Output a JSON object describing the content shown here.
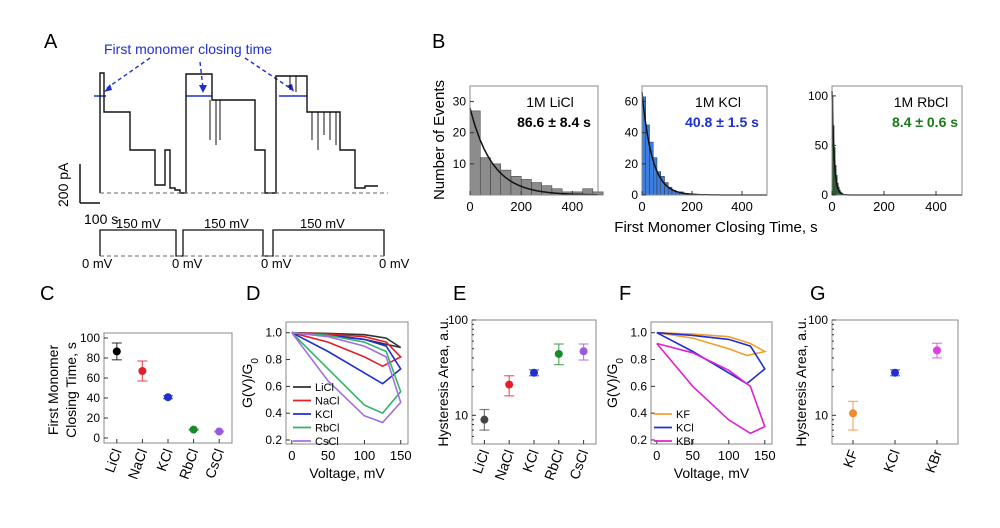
{
  "panel_letters": {
    "A": "A",
    "B": "B",
    "C": "C",
    "D": "D",
    "E": "E",
    "F": "F",
    "G": "G"
  },
  "panel_a": {
    "annotation": "First monomer closing time",
    "scale_current": "200 pA",
    "scale_time": "100 s",
    "voltage_high": "150 mV",
    "voltage_low": "0 mV"
  },
  "chart_data": [
    {
      "panel": "B",
      "type": "bar",
      "xlabel": "First Monomer Closing Time, s",
      "ylabel": "Number of Events",
      "subplots": [
        {
          "name": "1M LiCl",
          "stat": "86.6 ± 8.4 s",
          "color": "#8c8c8c",
          "stat_color": "#000000",
          "xlim": [
            0,
            500
          ],
          "ylim": [
            0,
            35
          ],
          "xticks": [
            0,
            200,
            400
          ],
          "yticks": [
            10,
            20,
            30
          ],
          "bin_width": 40,
          "bins": [
            0,
            40,
            80,
            120,
            160,
            200,
            240,
            280,
            320,
            360,
            400,
            440,
            480
          ],
          "values": [
            27,
            12,
            10,
            8,
            6,
            5,
            4,
            3,
            2,
            1,
            1,
            2,
            1
          ],
          "fit_tau": 86.6,
          "fit_a": 28
        },
        {
          "name": "1M KCl",
          "stat": "40.8 ± 1.5 s",
          "color": "#3d7fe0",
          "stat_color": "#1f2fd0",
          "xlim": [
            0,
            500
          ],
          "ylim": [
            0,
            70
          ],
          "xticks": [
            0,
            200,
            400
          ],
          "yticks": [
            0,
            20,
            40,
            60
          ],
          "bin_width": 15,
          "bins": [
            0,
            15,
            30,
            45,
            60,
            75,
            90,
            105,
            120,
            135,
            150,
            165
          ],
          "values": [
            63,
            45,
            34,
            24,
            15,
            12,
            8,
            5,
            3,
            2,
            2,
            1
          ],
          "fit_tau": 40.8,
          "fit_a": 66
        },
        {
          "name": "1M RbCl",
          "stat": "8.4 ± 0.6 s",
          "color": "#1f8f2a",
          "stat_color": "#1a7a1a",
          "xlim": [
            0,
            500
          ],
          "ylim": [
            0,
            110
          ],
          "xticks": [
            0,
            200,
            400
          ],
          "yticks": [
            0,
            50,
            100
          ],
          "bin_width": 4,
          "bins": [
            0,
            4,
            8,
            12,
            16,
            20,
            24,
            28,
            32,
            36
          ],
          "values": [
            100,
            70,
            48,
            30,
            20,
            12,
            8,
            5,
            3,
            2
          ],
          "fit_tau": 8.4,
          "fit_a": 105
        }
      ]
    },
    {
      "panel": "C",
      "type": "scatter",
      "ylabel": "First Monomer Closing Time, s",
      "categories": [
        "LiCl",
        "NaCl",
        "KCl",
        "RbCl",
        "CsCl"
      ],
      "values": [
        86.6,
        67,
        40.8,
        8.4,
        6.5
      ],
      "errors": [
        8.4,
        10,
        1.5,
        0.6,
        0.5
      ],
      "colors": [
        "#000000",
        "#e0202a",
        "#1f2fd0",
        "#1a8a2a",
        "#9a5ae0"
      ],
      "ylim": [
        -5,
        105
      ],
      "yticks": [
        0,
        20,
        40,
        60,
        80,
        100
      ]
    },
    {
      "panel": "D",
      "type": "line",
      "xlabel": "Voltage, mV",
      "ylabel": "G(V)/G",
      "ylabel_sub": "0",
      "xlim": [
        -8,
        160
      ],
      "ylim": [
        0.17,
        1.08
      ],
      "xticks": [
        0,
        50,
        100,
        150
      ],
      "yticks": [
        0.2,
        0.4,
        0.6,
        0.8,
        1.0
      ],
      "series": [
        {
          "name": "LiCl",
          "color": "#333333",
          "upper": [
            [
              0,
              1.0
            ],
            [
              50,
              0.995
            ],
            [
              100,
              0.985
            ],
            [
              130,
              0.96
            ],
            [
              150,
              0.89
            ]
          ],
          "lower": [
            [
              150,
              0.89
            ],
            [
              125,
              0.92
            ],
            [
              100,
              0.95
            ],
            [
              50,
              0.985
            ],
            [
              0,
              1.0
            ]
          ]
        },
        {
          "name": "NaCl",
          "color": "#e0202a",
          "upper": [
            [
              0,
              1.0
            ],
            [
              50,
              0.99
            ],
            [
              100,
              0.97
            ],
            [
              130,
              0.93
            ],
            [
              150,
              0.82
            ]
          ],
          "lower": [
            [
              150,
              0.82
            ],
            [
              125,
              0.75
            ],
            [
              100,
              0.82
            ],
            [
              50,
              0.93
            ],
            [
              0,
              1.0
            ]
          ]
        },
        {
          "name": "KCl",
          "color": "#1f2fd0",
          "upper": [
            [
              0,
              1.0
            ],
            [
              50,
              0.98
            ],
            [
              100,
              0.95
            ],
            [
              130,
              0.9
            ],
            [
              150,
              0.73
            ]
          ],
          "lower": [
            [
              150,
              0.73
            ],
            [
              125,
              0.62
            ],
            [
              100,
              0.7
            ],
            [
              50,
              0.86
            ],
            [
              0,
              1.0
            ]
          ]
        },
        {
          "name": "RbCl",
          "color": "#33b36a",
          "upper": [
            [
              0,
              1.0
            ],
            [
              50,
              0.98
            ],
            [
              100,
              0.93
            ],
            [
              130,
              0.86
            ],
            [
              150,
              0.56
            ]
          ],
          "lower": [
            [
              150,
              0.56
            ],
            [
              125,
              0.4
            ],
            [
              100,
              0.46
            ],
            [
              50,
              0.73
            ],
            [
              0,
              1.0
            ]
          ]
        },
        {
          "name": "CsCl",
          "color": "#a070e0",
          "upper": [
            [
              0,
              1.0
            ],
            [
              50,
              0.97
            ],
            [
              100,
              0.9
            ],
            [
              130,
              0.82
            ],
            [
              150,
              0.48
            ]
          ],
          "lower": [
            [
              150,
              0.48
            ],
            [
              125,
              0.33
            ],
            [
              100,
              0.38
            ],
            [
              50,
              0.64
            ],
            [
              0,
              1.0
            ]
          ]
        }
      ]
    },
    {
      "panel": "E",
      "type": "scatter",
      "ylabel": "Hysteresis Area, a.u.",
      "log_y": true,
      "categories": [
        "LiCl",
        "NaCl",
        "KCl",
        "RbCl",
        "CsCl"
      ],
      "values": [
        9,
        21,
        28,
        44,
        47
      ],
      "err_low": [
        7,
        16,
        26,
        34,
        38
      ],
      "err_high": [
        11.5,
        26,
        30,
        56,
        56
      ],
      "colors": [
        "#444444",
        "#e0202a",
        "#1f2fd0",
        "#1a8a2a",
        "#9a5ae0"
      ],
      "ylim": [
        5,
        100
      ],
      "yticks": [
        10,
        100
      ]
    },
    {
      "panel": "F",
      "type": "line",
      "xlabel": "Voltage, mV",
      "ylabel": "G(V)/G",
      "ylabel_sub": "0",
      "xlim": [
        -8,
        160
      ],
      "ylim": [
        0.17,
        1.08
      ],
      "xticks": [
        0,
        50,
        100,
        150
      ],
      "yticks": [
        0.2,
        0.4,
        0.6,
        0.8,
        1.0
      ],
      "series": [
        {
          "name": "KF",
          "color": "#f0a030",
          "upper": [
            [
              0,
              1.0
            ],
            [
              50,
              0.99
            ],
            [
              100,
              0.97
            ],
            [
              130,
              0.92
            ],
            [
              150,
              0.86
            ]
          ],
          "lower": [
            [
              150,
              0.86
            ],
            [
              125,
              0.83
            ],
            [
              100,
              0.88
            ],
            [
              50,
              0.96
            ],
            [
              0,
              1.0
            ]
          ]
        },
        {
          "name": "KCl",
          "color": "#1f2fd0",
          "upper": [
            [
              0,
              1.0
            ],
            [
              50,
              0.98
            ],
            [
              100,
              0.95
            ],
            [
              130,
              0.9
            ],
            [
              150,
              0.73
            ]
          ],
          "lower": [
            [
              150,
              0.73
            ],
            [
              125,
              0.62
            ],
            [
              100,
              0.7
            ],
            [
              50,
              0.86
            ],
            [
              0,
              1.0
            ]
          ]
        },
        {
          "name": "KBr",
          "color": "#e020d0",
          "upper": [
            [
              0,
              0.92
            ],
            [
              50,
              0.85
            ],
            [
              100,
              0.72
            ],
            [
              130,
              0.6
            ],
            [
              150,
              0.3
            ]
          ],
          "lower": [
            [
              150,
              0.3
            ],
            [
              130,
              0.25
            ],
            [
              100,
              0.35
            ],
            [
              50,
              0.6
            ],
            [
              0,
              0.92
            ]
          ]
        }
      ]
    },
    {
      "panel": "G",
      "type": "scatter",
      "ylabel": "Hysteresis Area, a.u.",
      "log_y": true,
      "categories": [
        "KF",
        "KCl",
        "KBr"
      ],
      "values": [
        10.5,
        28,
        48
      ],
      "err_low": [
        7,
        26,
        40
      ],
      "err_high": [
        14,
        30,
        57
      ],
      "colors": [
        "#f08a30",
        "#1f2fd0",
        "#e040e0"
      ],
      "ylim": [
        5,
        100
      ],
      "yticks": [
        10,
        100
      ]
    }
  ]
}
